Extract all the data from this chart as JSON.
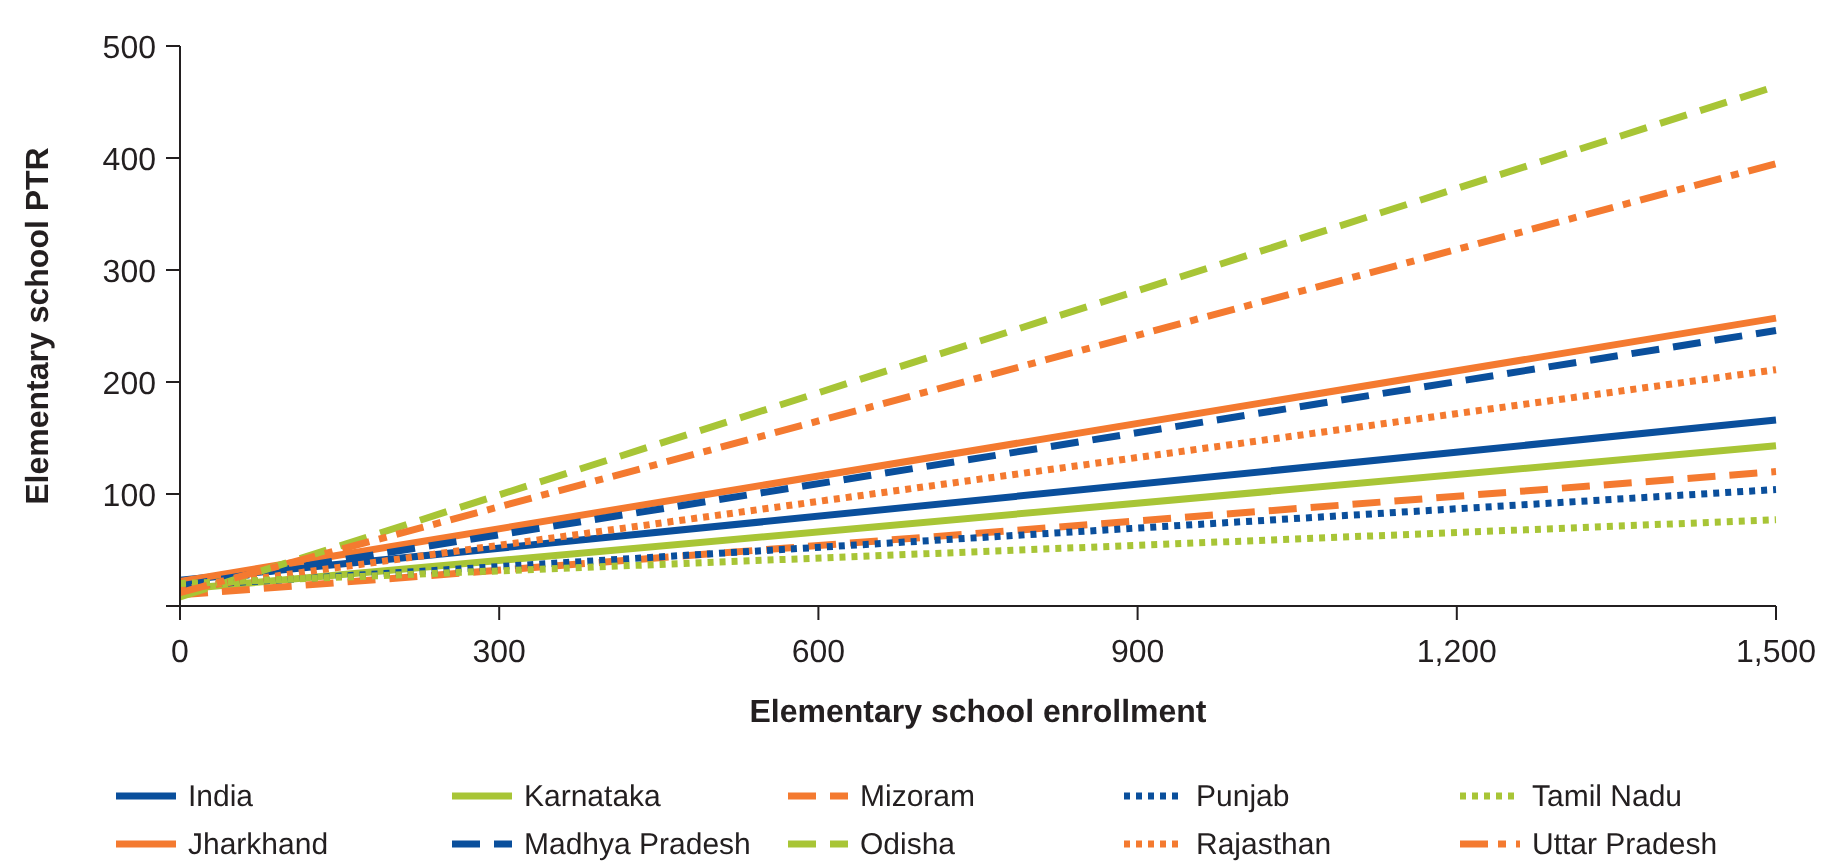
{
  "chart_data": {
    "type": "line",
    "xlabel": "Elementary school enrollment",
    "ylabel": "Elementary school PTR",
    "x": [
      0,
      1500
    ],
    "xlim": [
      0,
      1500
    ],
    "xticks": [
      0,
      300,
      600,
      900,
      {
        "value": 1200,
        "label": "1,200"
      },
      {
        "value": 1500,
        "label": "1,500"
      }
    ],
    "ylim": [
      0,
      500
    ],
    "yticks": [
      {
        "value": 0,
        "label": null
      },
      100,
      200,
      300,
      400,
      500
    ],
    "grid": false,
    "legend": "bottom",
    "series": [
      {
        "name": "India",
        "color": "#0a4f9c",
        "line_style": "solid",
        "values": [
          23,
          166
        ]
      },
      {
        "name": "Jharkhand",
        "color": "#f47a30",
        "line_style": "solid",
        "values": [
          22,
          257
        ]
      },
      {
        "name": "Karnataka",
        "color": "#a8c536",
        "line_style": "solid",
        "values": [
          15,
          143
        ]
      },
      {
        "name": "Madhya Pradesh",
        "color": "#0a4f9c",
        "line_style": "dashed",
        "values": [
          18,
          246
        ]
      },
      {
        "name": "Mizoram",
        "color": "#f47a30",
        "line_style": "dashed",
        "values": [
          10,
          120
        ]
      },
      {
        "name": "Odisha",
        "color": "#a8c536",
        "line_style": "dashed",
        "values": [
          8,
          464
        ]
      },
      {
        "name": "Punjab",
        "color": "#0a4f9c",
        "line_style": "dotted",
        "values": [
          18,
          104
        ]
      },
      {
        "name": "Rajasthan",
        "color": "#f47a30",
        "line_style": "dotted",
        "values": [
          15,
          211
        ]
      },
      {
        "name": "Tamil Nadu",
        "color": "#a8c536",
        "line_style": "dotted",
        "values": [
          20,
          77
        ]
      },
      {
        "name": "Uttar Pradesh",
        "color": "#f47a30",
        "line_style": "dashdot",
        "values": [
          12,
          395
        ]
      }
    ]
  }
}
